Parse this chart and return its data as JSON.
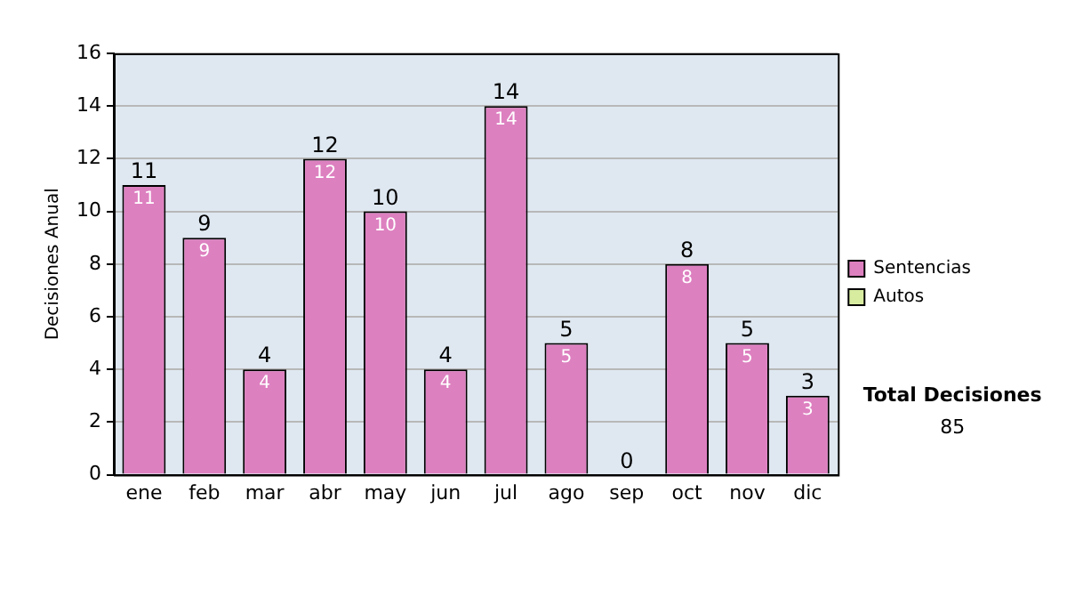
{
  "chart_data": {
    "type": "bar",
    "ylabel": "Decisiones Anual",
    "categories": [
      "ene",
      "feb",
      "mar",
      "abr",
      "may",
      "jun",
      "jul",
      "ago",
      "sep",
      "oct",
      "nov",
      "dic"
    ],
    "series": [
      {
        "name": "Sentencias",
        "color": "#dd80c0",
        "values": [
          11,
          9,
          4,
          12,
          10,
          4,
          14,
          5,
          0,
          8,
          5,
          3
        ],
        "value_labels": [
          "11",
          "9",
          "4",
          "12",
          "10",
          "4",
          "14",
          "5",
          null,
          "8",
          "5",
          "3"
        ]
      },
      {
        "name": "Autos",
        "color": "#d8eca0",
        "values": [
          null,
          null,
          null,
          null,
          null,
          null,
          null,
          null,
          null,
          null,
          null,
          null
        ]
      }
    ],
    "stacked": true,
    "totals": [
      "11",
      "9",
      "4",
      "12",
      "10",
      "4",
      "14",
      "5",
      "0",
      "8",
      "5",
      "3"
    ],
    "ylim": [
      0,
      16
    ],
    "yticks": [
      0,
      2,
      4,
      6,
      8,
      10,
      12,
      14,
      16
    ],
    "grid": "y",
    "legend": "right",
    "annotations": [
      "Total Decisiones",
      "85"
    ]
  }
}
